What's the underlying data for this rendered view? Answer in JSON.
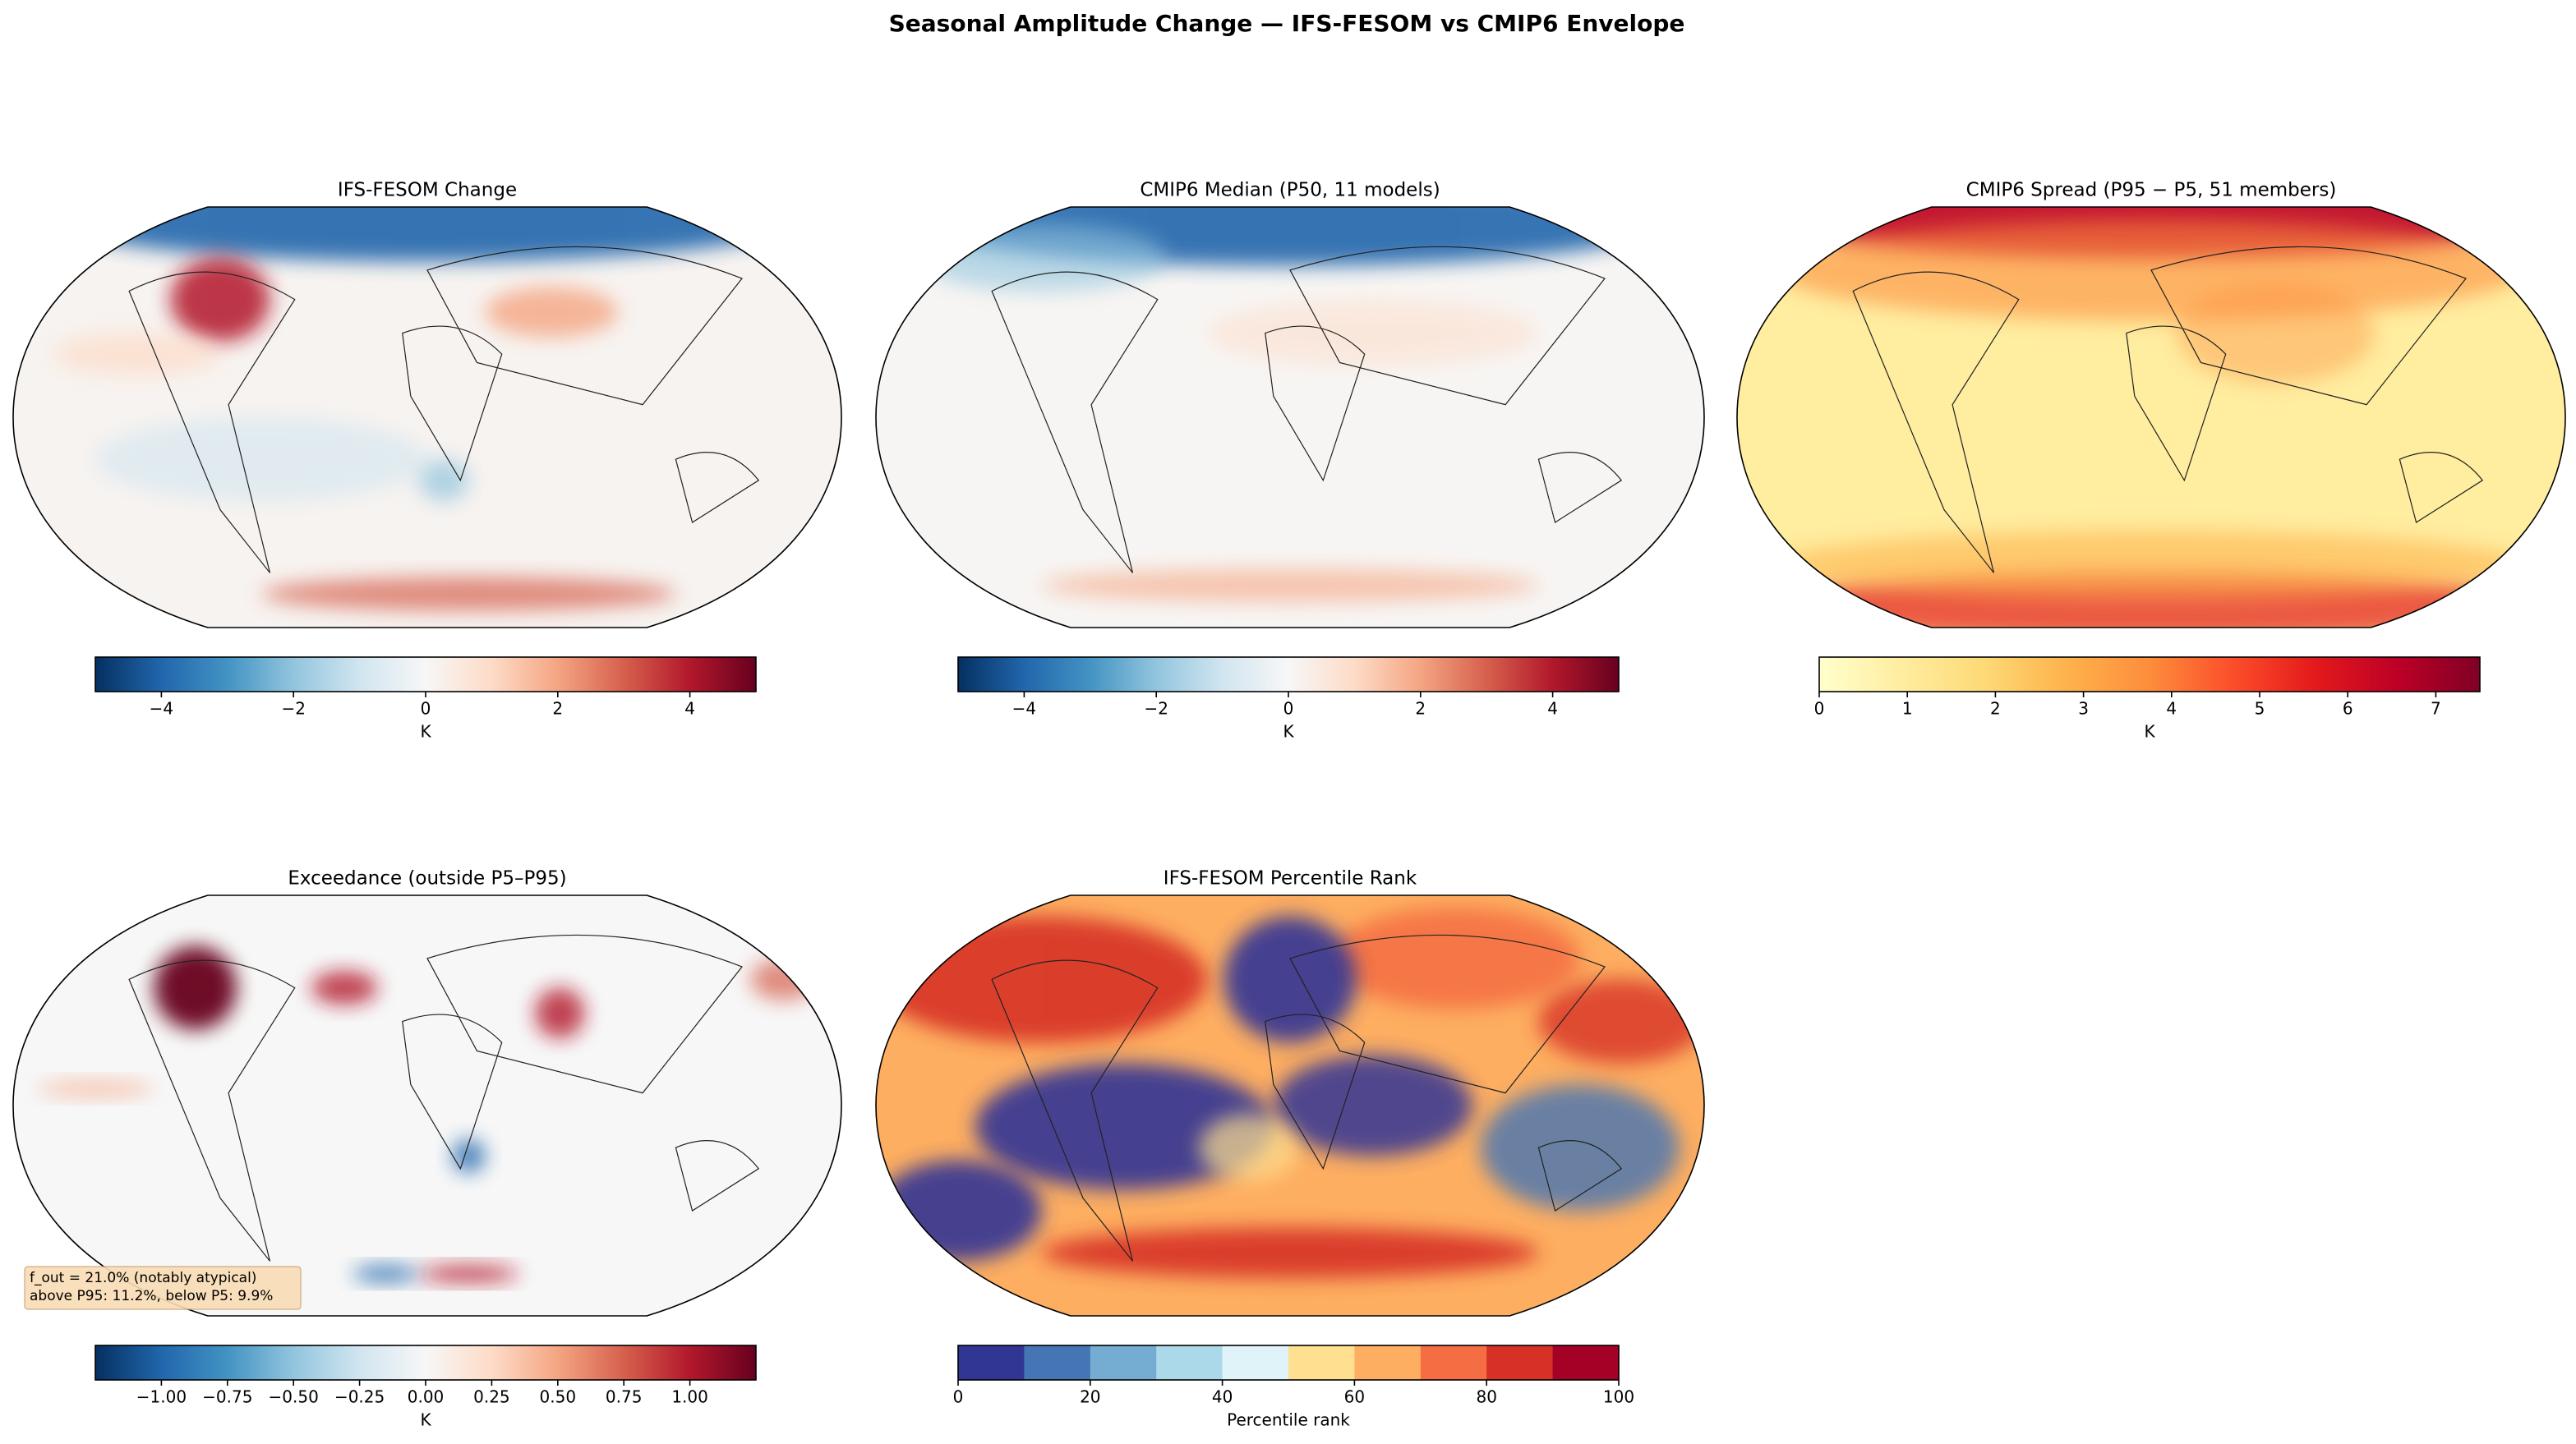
{
  "title": "Seasonal Amplitude Change — IFS-FESOM vs CMIP6 Envelope",
  "panels": [
    {
      "title": "IFS-FESOM Change",
      "colorbar": {
        "label": "K",
        "lim": [
          -5,
          5
        ],
        "ticks": [
          {
            "value": -4,
            "label": "−4"
          },
          {
            "value": -2,
            "label": "−2"
          },
          0,
          2,
          4
        ],
        "colors": [
          "#053061",
          "#2166ac",
          "#4393c3",
          "#92c5de",
          "#d1e5f0",
          "#f7f7f7",
          "#fddbc7",
          "#f4a582",
          "#d6604d",
          "#b2182b",
          "#67001f"
        ]
      }
    },
    {
      "title": "CMIP6 Median (P50, 11 models)",
      "colorbar": {
        "label": "K",
        "lim": [
          -5,
          5
        ],
        "ticks": [
          {
            "value": -4,
            "label": "−4"
          },
          {
            "value": -2,
            "label": "−2"
          },
          0,
          2,
          4
        ],
        "colors": [
          "#053061",
          "#2166ac",
          "#4393c3",
          "#92c5de",
          "#d1e5f0",
          "#f7f7f7",
          "#fddbc7",
          "#f4a582",
          "#d6604d",
          "#b2182b",
          "#67001f"
        ]
      }
    },
    {
      "title": "CMIP6 Spread (P95 − P5, 51 members)",
      "colorbar": {
        "label": "K",
        "lim": [
          0,
          7.5
        ],
        "ticks": [
          0,
          1,
          2,
          3,
          4,
          5,
          6,
          7
        ],
        "colors": [
          "#ffffcc",
          "#ffeda0",
          "#fed976",
          "#feb24c",
          "#fd8d3c",
          "#fc4e2a",
          "#e31a1c",
          "#bd0026",
          "#800026"
        ]
      }
    },
    {
      "title": "Exceedance (outside P5–P95)",
      "colorbar": {
        "label": "K",
        "lim": [
          -1.25,
          1.25
        ],
        "ticks": [
          {
            "value": -1,
            "label": "−1.00"
          },
          {
            "value": -0.75,
            "label": "−0.75"
          },
          {
            "value": -0.5,
            "label": "−0.50"
          },
          {
            "value": -0.25,
            "label": "−0.25"
          },
          {
            "value": 0,
            "label": "0.00"
          },
          {
            "value": 0.25,
            "label": "0.25"
          },
          {
            "value": 0.5,
            "label": "0.50"
          },
          {
            "value": 0.75,
            "label": "0.75"
          },
          {
            "value": 1,
            "label": "1.00"
          }
        ],
        "colors": [
          "#053061",
          "#2166ac",
          "#4393c3",
          "#92c5de",
          "#d1e5f0",
          "#f7f7f7",
          "#fddbc7",
          "#f4a582",
          "#d6604d",
          "#b2182b",
          "#67001f"
        ]
      },
      "annotation": [
        "f_out = 21.0% (notably atypical)",
        "above P95: 11.2%, below P5: 9.9%"
      ]
    },
    {
      "title": "IFS-FESOM Percentile Rank",
      "colorbar": {
        "label": "Percentile rank",
        "lim": [
          0,
          100
        ],
        "discrete": true,
        "ticks": [
          0,
          20,
          40,
          60,
          80,
          100
        ],
        "colors": [
          "#313695",
          "#4575b4",
          "#74add1",
          "#abd9e9",
          "#e0f3f8",
          "#fee090",
          "#fdae61",
          "#f46d43",
          "#d73027",
          "#a50026"
        ]
      }
    }
  ]
}
